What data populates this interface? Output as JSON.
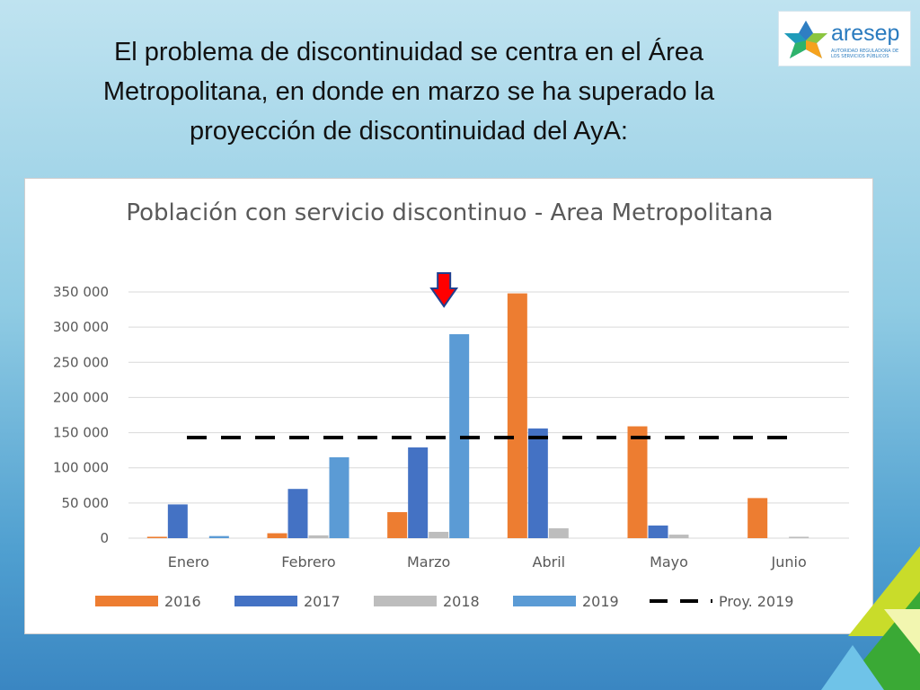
{
  "slide": {
    "title": "El problema de discontinuidad se centra en el Área Metropolitana, en donde en marzo se ha superado la proyección de discontinuidad del AyA:"
  },
  "logo": {
    "name": "aresep",
    "tagline": "AUTORIDAD REGULADORA DE LOS SERVICIOS PÚBLICOS"
  },
  "colors": {
    "s2016": "#ed7d31",
    "s2017": "#4472c4",
    "s2018": "#bdbdbd",
    "s2019": "#5b9bd5",
    "projection": "#000000",
    "arrow": "#ff0000"
  },
  "chart_data": {
    "type": "bar",
    "title": "Población con servicio discontinuo - Area Metropolitana",
    "categories": [
      "Enero",
      "Febrero",
      "Marzo",
      "Abril",
      "Mayo",
      "Junio"
    ],
    "ylim": [
      0,
      350000
    ],
    "yticks": [
      0,
      50000,
      100000,
      150000,
      200000,
      250000,
      300000,
      350000
    ],
    "ytick_labels": [
      "0",
      "50 000",
      "100 000",
      "150 000",
      "200 000",
      "250 000",
      "300 000",
      "350 000"
    ],
    "grid": true,
    "legend_position": "bottom",
    "series": [
      {
        "name": "2016",
        "values": [
          2000,
          7000,
          37000,
          348000,
          159000,
          57000
        ]
      },
      {
        "name": "2017",
        "values": [
          48000,
          70000,
          129000,
          156000,
          18000,
          0
        ]
      },
      {
        "name": "2018",
        "values": [
          0,
          4000,
          9000,
          14000,
          5000,
          2000
        ]
      },
      {
        "name": "2019",
        "values": [
          3000,
          115000,
          290000,
          0,
          0,
          0
        ]
      }
    ],
    "projection": {
      "name": "Proy. 2019",
      "value": 143000,
      "style": "dashed"
    },
    "annotation": {
      "type": "arrow",
      "category": "Marzo",
      "meaning": "marzo supera la proyección"
    }
  }
}
